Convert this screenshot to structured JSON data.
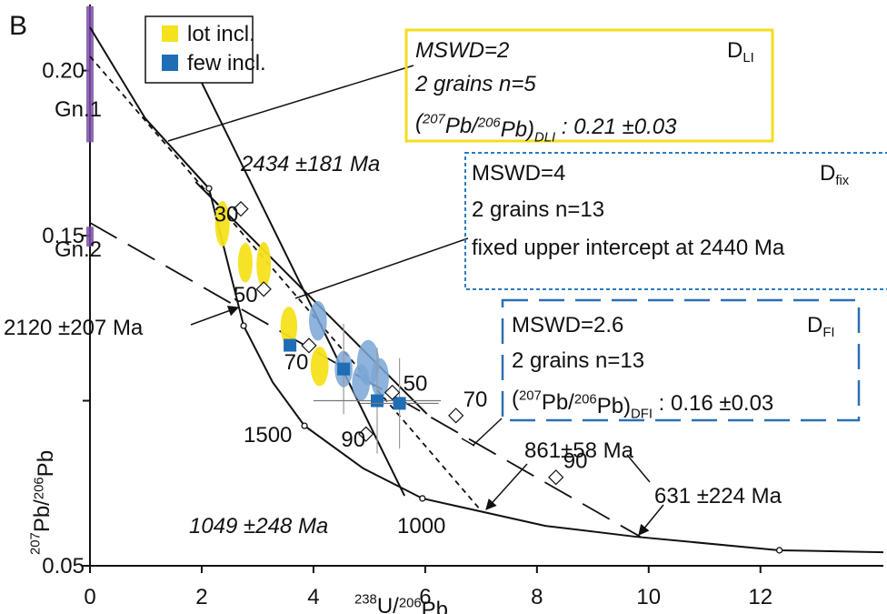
{
  "chart_data": {
    "type": "scatter",
    "panel_label": "B",
    "x_label": [
      {
        "sup": "238"
      },
      {
        "t": "U/"
      },
      {
        "sup": "206"
      },
      {
        "t": "Pb"
      }
    ],
    "y_label": [
      {
        "sup": "207"
      },
      {
        "t": "Pb/"
      },
      {
        "sup": "206"
      },
      {
        "t": "Pb"
      }
    ],
    "xlim": [
      0,
      14.2
    ],
    "xticks": [
      0,
      2,
      4,
      6,
      8,
      10,
      12
    ],
    "ylim": [
      0.05,
      0.22
    ],
    "yticks": [
      0.05,
      {
        "value": 0.1,
        "label": null
      },
      0.15,
      {
        "value": 0.2,
        "label": "0.20"
      }
    ],
    "series": [
      {
        "name": "lot incl.",
        "color": "#f6e21c",
        "ellipse_color": "#f6e21c",
        "ellipses": {
          "x": [
            2.37,
            2.78,
            3.11,
            3.56,
            4.11
          ],
          "y": [
            0.1536,
            0.1418,
            0.1412,
            0.1225,
            0.1104
          ],
          "sx": [
            0.13,
            0.13,
            0.13,
            0.15,
            0.16
          ],
          "sy": [
            0.0069,
            0.006,
            0.0069,
            0.006,
            0.006
          ]
        }
      },
      {
        "name": "few incl.",
        "color": "#1f6db5",
        "ellipse_color": "#7aa6d6",
        "ellipses": {
          "x": [
            4.08,
            4.54,
            4.98,
            4.85,
            5.19
          ],
          "y": [
            0.1242,
            0.1096,
            0.1115,
            0.1055,
            0.1069
          ],
          "sx": [
            0.16,
            0.16,
            0.2,
            0.16,
            0.16
          ],
          "sy": [
            0.006,
            0.0055,
            0.0069,
            0.0055,
            0.006
          ]
        },
        "points": {
          "x": [
            3.58,
            4.54,
            5.14,
            5.54
          ],
          "y": [
            0.1168,
            0.1096,
            0.1,
            0.0992
          ],
          "xerr": [
            null,
            null,
            1.14,
            0.7
          ],
          "yerr": [
            null,
            0.0137,
            0.016,
            0.0137
          ]
        }
      }
    ],
    "concordia": {
      "x": [
        0,
        0.99,
        2.13,
        2.75,
        3.27,
        3.84,
        4.89,
        5.95,
        8.15,
        9.77,
        12.34,
        14.2
      ],
      "y": [
        0.2131,
        0.1855,
        0.1643,
        0.1227,
        0.1056,
        0.0924,
        0.0795,
        0.0704,
        0.0621,
        0.0588,
        0.0547,
        0.0541
      ]
    },
    "concordia_markers": {
      "x": [
        2.13,
        2.75,
        3.84,
        5.95,
        12.34
      ],
      "y": [
        0.1643,
        0.1227,
        0.0924,
        0.0704,
        0.0547
      ]
    },
    "regression_lines": [
      {
        "style": "solid",
        "x": [
          1.85,
          5.63
        ],
        "y": [
          0.2015,
          0.0712
        ]
      },
      {
        "style": "dashed",
        "x": [
          0,
          7.01
        ],
        "y": [
          0.2043,
          0.0665
        ]
      },
      {
        "style": "solid",
        "x": [
          1.89,
          6.03
        ],
        "y": [
          0.1663,
          0.096
        ]
      },
      {
        "style": "longdash",
        "x": [
          0,
          9.85
        ],
        "y": [
          0.1539,
          0.0588
        ]
      }
    ],
    "model_ages": {
      "x": [
        2.7,
        3.11,
        3.92,
        5.41,
        4.94,
        6.55,
        8.34
      ],
      "y": [
        0.1581,
        0.1338,
        0.1167,
        0.1025,
        0.0899,
        0.0955,
        0.0768
      ],
      "labels": [
        "30",
        "50",
        "70",
        "50",
        "90",
        "70",
        "90"
      ]
    },
    "groups": [
      {
        "name": "Gn.1",
        "color": "#7b4fa8",
        "range": [
          0.1783,
          0.2195
        ]
      },
      {
        "name": "Gn.2",
        "color": "#7b4fa8",
        "range": [
          0.1467,
          0.1527
        ]
      }
    ],
    "ages": [
      "2434 ±181 Ma",
      "2120 ±207 Ma",
      "1500",
      "1000",
      "1049 ±248 Ma",
      "861±58 Ma",
      "631 ±224 Ma"
    ],
    "boxes": [
      {
        "color": "#f3dd1e",
        "lines": [
          [
            {
              "t": "MSWD=2"
            }
          ],
          [
            {
              "t": "2 grains n=5"
            }
          ],
          [
            {
              "t": "("
            },
            {
              "sup": "207"
            },
            {
              "t": "Pb/"
            },
            {
              "sup": "206"
            },
            {
              "t": "Pb)"
            },
            {
              "sub": "DLI"
            },
            {
              "t": " : 0.21 ±0.03"
            }
          ]
        ],
        "tag": [
          {
            "t": "D"
          },
          {
            "sub": "LI"
          }
        ]
      },
      {
        "color": "#2a7bc0",
        "lines": [
          [
            {
              "t": "MSWD=4"
            }
          ],
          [
            {
              "t": "2 grains  n=13"
            }
          ],
          [
            {
              "t": "fixed upper intercept at 2440 Ma"
            }
          ]
        ],
        "tag": [
          {
            "t": "D"
          },
          {
            "sub": "fix"
          }
        ]
      },
      {
        "color": "#2d6fb3",
        "lines": [
          [
            {
              "t": "MSWD=2.6"
            }
          ],
          [
            {
              "t": "2 grains  n=13"
            }
          ],
          [
            {
              "t": "("
            },
            {
              "sup": "207"
            },
            {
              "t": "Pb/"
            },
            {
              "sup": "206"
            },
            {
              "t": "Pb)"
            },
            {
              "sub": "DFI"
            },
            {
              "t": " : 0.16 ±0.03"
            }
          ]
        ],
        "tag": [
          {
            "t": "D"
          },
          {
            "sub": "FI"
          }
        ]
      }
    ]
  }
}
